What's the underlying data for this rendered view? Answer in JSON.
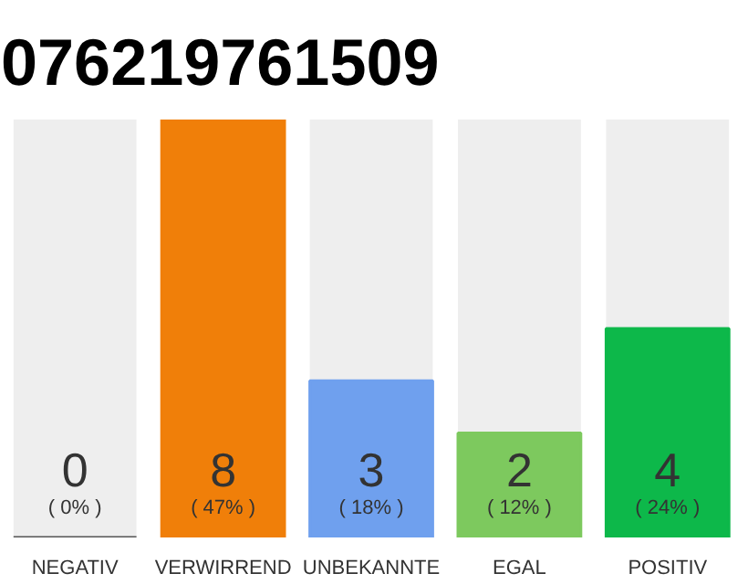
{
  "chart_data": {
    "type": "bar",
    "title": "076219761509",
    "categories": [
      "NEGATIV",
      "VERWIRREND",
      "UNBEKANNTE",
      "EGAL",
      "POSITIV"
    ],
    "values": [
      0,
      8,
      3,
      2,
      4
    ],
    "colors": [
      "#555555",
      "#f07f09",
      "#6fa0ee",
      "#7dc95e",
      "#0db84a"
    ],
    "data_labels": true,
    "grid": false,
    "tick_labels": "x",
    "annotations": [
      "( 0% )",
      "( 47% )",
      "( 18% )",
      "( 12% )",
      "( 24% )"
    ]
  }
}
